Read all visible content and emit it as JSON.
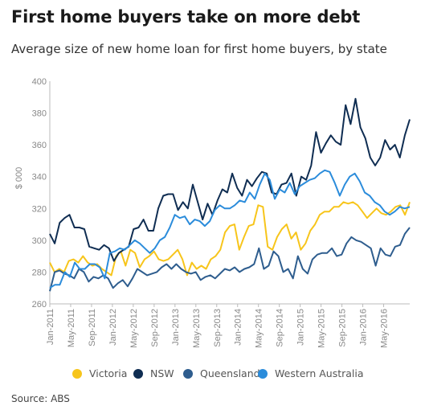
{
  "title": "First home buyers take on more debt",
  "subtitle": "Average size of new home loan for first home buyers, by state",
  "source": "Source: ABS",
  "chart_data": {
    "type": "line",
    "ylabel": "$ 000",
    "ylim": [
      260,
      400
    ],
    "yticks": [
      260,
      280,
      300,
      320,
      340,
      360,
      380,
      400
    ],
    "grid": false,
    "legend_position": "bottom",
    "x_start": "2011-01",
    "x_end": "2016-09",
    "xticks": [
      "Jan-2011",
      "May-2011",
      "Sep-2011",
      "Jan-2012",
      "May-2012",
      "Sep-2012",
      "Jan-2013",
      "May-2013",
      "Sep-2013",
      "Jan-2014",
      "May-2014",
      "Sep-2014",
      "Jan-2015",
      "May-2015",
      "Sep-2015",
      "Jan-2016",
      "May-2016"
    ],
    "series": [
      {
        "name": "Victoria",
        "color": "#f7c51b",
        "values": [
          286,
          280,
          282,
          280,
          287,
          288,
          286,
          290,
          286,
          284,
          285,
          282,
          280,
          278,
          290,
          293,
          284,
          294,
          292,
          283,
          288,
          290,
          293,
          288,
          287,
          288,
          291,
          294,
          288,
          278,
          286,
          282,
          284,
          282,
          288,
          290,
          294,
          305,
          309,
          310,
          294,
          302,
          309,
          310,
          322,
          321,
          296,
          294,
          302,
          307,
          310,
          301,
          305,
          294,
          298,
          306,
          310,
          316,
          318,
          318,
          321,
          321,
          324,
          323,
          324,
          322,
          318,
          314,
          317,
          320,
          317,
          316,
          318,
          321,
          322,
          316,
          324
        ]
      },
      {
        "name": "NSW",
        "color": "#0f2d52",
        "values": [
          304,
          298,
          311,
          314,
          316,
          308,
          308,
          307,
          296,
          295,
          294,
          297,
          295,
          287,
          292,
          294,
          296,
          307,
          308,
          313,
          306,
          306,
          320,
          328,
          329,
          329,
          319,
          324,
          320,
          335,
          324,
          313,
          323,
          316,
          325,
          332,
          330,
          342,
          333,
          328,
          338,
          334,
          339,
          343,
          342,
          330,
          329,
          335,
          336,
          342,
          328,
          340,
          338,
          347,
          368,
          355,
          361,
          366,
          362,
          360,
          385,
          373,
          389,
          371,
          364,
          352,
          347,
          352,
          363,
          357,
          360,
          352,
          366,
          376
        ]
      },
      {
        "name": "Queensland",
        "color": "#2e5d8e",
        "values": [
          268,
          280,
          281,
          279,
          278,
          276,
          282,
          280,
          274,
          277,
          276,
          278,
          276,
          270,
          273,
          275,
          271,
          276,
          282,
          280,
          278,
          279,
          280,
          283,
          285,
          282,
          285,
          282,
          280,
          279,
          280,
          275,
          277,
          278,
          276,
          279,
          282,
          281,
          283,
          280,
          282,
          283,
          285,
          295,
          282,
          284,
          293,
          290,
          280,
          282,
          276,
          290,
          282,
          279,
          288,
          291,
          292,
          292,
          295,
          290,
          291,
          298,
          302,
          300,
          299,
          297,
          295,
          284,
          295,
          291,
          290,
          296,
          297,
          304,
          308
        ]
      },
      {
        "name": "Western Australia",
        "color": "#2b8cdb",
        "values": [
          270,
          272,
          272,
          280,
          277,
          286,
          282,
          282,
          285,
          285,
          283,
          276,
          292,
          293,
          295,
          294,
          297,
          300,
          298,
          295,
          292,
          295,
          300,
          302,
          308,
          316,
          314,
          315,
          310,
          313,
          312,
          309,
          312,
          319,
          322,
          320,
          320,
          322,
          325,
          324,
          330,
          326,
          335,
          342,
          338,
          326,
          332,
          330,
          336,
          329,
          334,
          336,
          338,
          339,
          342,
          344,
          343,
          336,
          328,
          335,
          340,
          342,
          337,
          330,
          328,
          324,
          322,
          318,
          316,
          318,
          321,
          320,
          321
        ]
      }
    ]
  }
}
